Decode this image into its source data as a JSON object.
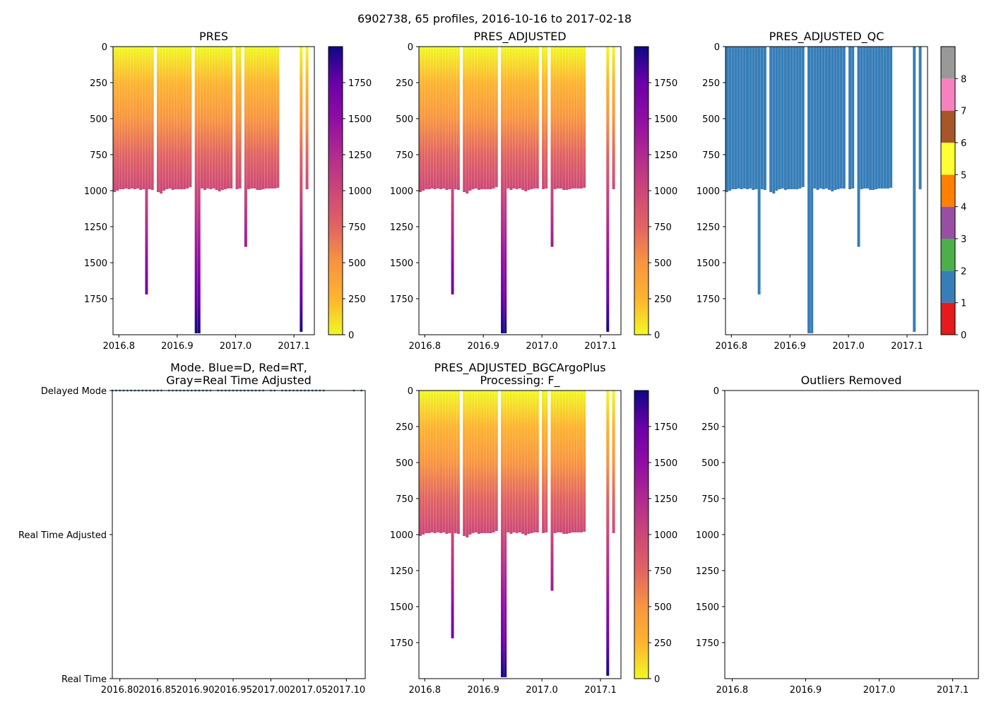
{
  "figure": {
    "title": "6902738, 65 profiles, 2016-10-16 to 2017-02-18"
  },
  "chart_data": [
    {
      "id": "pres",
      "type": "heatmap",
      "title": "PRES",
      "colormap": "plasma_r",
      "x": [
        2016.79,
        2016.795,
        2016.8,
        2016.805,
        2016.81,
        2016.815,
        2016.82,
        2016.825,
        2016.83,
        2016.835,
        2016.84,
        2016.845,
        2016.85,
        2016.855,
        2016.865,
        2016.87,
        2016.875,
        2016.88,
        2016.885,
        2016.89,
        2016.895,
        2016.9,
        2016.905,
        2016.91,
        2016.915,
        2016.92,
        2016.93,
        2016.935,
        2016.94,
        2016.945,
        2016.95,
        2016.955,
        2016.96,
        2016.965,
        2016.97,
        2016.975,
        2016.98,
        2016.985,
        2016.99,
        2017.0,
        2017.005,
        2017.015,
        2017.02,
        2017.025,
        2017.03,
        2017.035,
        2017.04,
        2017.045,
        2017.05,
        2017.055,
        2017.06,
        2017.065,
        2017.07,
        2017.11,
        2017.12
      ],
      "max_depth": [
        1010,
        1000,
        990,
        990,
        985,
        990,
        985,
        990,
        985,
        995,
        990,
        1720,
        990,
        995,
        1010,
        1020,
        1000,
        990,
        985,
        995,
        990,
        990,
        990,
        990,
        985,
        975,
        1990,
        1990,
        985,
        995,
        985,
        990,
        985,
        995,
        1005,
        995,
        990,
        985,
        985,
        990,
        985,
        1390,
        990,
        985,
        985,
        995,
        995,
        990,
        985,
        985,
        985,
        985,
        980,
        1980,
        990
      ],
      "xlim": [
        2016.79,
        2017.135
      ],
      "xticks": [
        2016.8,
        2016.9,
        2017.0,
        2017.1
      ],
      "xticklabels": [
        "2016.8",
        "2016.9",
        "2017.0",
        "2017.1"
      ],
      "ylim": [
        0,
        2000
      ],
      "yticks": [
        0,
        250,
        500,
        750,
        1000,
        1250,
        1500,
        1750
      ],
      "colorbar": {
        "range": [
          0,
          2000
        ],
        "ticks": [
          0,
          250,
          500,
          750,
          1000,
          1250,
          1500,
          1750
        ]
      }
    },
    {
      "id": "pres_adj",
      "type": "heatmap",
      "title": "PRES_ADJUSTED",
      "colormap": "plasma_r",
      "x": [
        2016.79,
        2016.795,
        2016.8,
        2016.805,
        2016.81,
        2016.815,
        2016.82,
        2016.825,
        2016.83,
        2016.835,
        2016.84,
        2016.845,
        2016.85,
        2016.855,
        2016.865,
        2016.87,
        2016.875,
        2016.88,
        2016.885,
        2016.89,
        2016.895,
        2016.9,
        2016.905,
        2016.91,
        2016.915,
        2016.92,
        2016.93,
        2016.935,
        2016.94,
        2016.945,
        2016.95,
        2016.955,
        2016.96,
        2016.965,
        2016.97,
        2016.975,
        2016.98,
        2016.985,
        2016.99,
        2017.0,
        2017.005,
        2017.015,
        2017.02,
        2017.025,
        2017.03,
        2017.035,
        2017.04,
        2017.045,
        2017.05,
        2017.055,
        2017.06,
        2017.065,
        2017.07,
        2017.11,
        2017.12
      ],
      "max_depth": [
        1010,
        1000,
        990,
        990,
        985,
        990,
        985,
        990,
        985,
        995,
        990,
        1720,
        990,
        995,
        1010,
        1020,
        1000,
        990,
        985,
        995,
        990,
        990,
        990,
        990,
        985,
        975,
        1990,
        1990,
        985,
        995,
        985,
        990,
        985,
        995,
        1005,
        995,
        990,
        985,
        985,
        990,
        985,
        1390,
        990,
        985,
        985,
        995,
        995,
        990,
        985,
        985,
        985,
        985,
        980,
        1980,
        990
      ],
      "xlim": [
        2016.79,
        2017.135
      ],
      "xticks": [
        2016.8,
        2016.9,
        2017.0,
        2017.1
      ],
      "xticklabels": [
        "2016.8",
        "2016.9",
        "2017.0",
        "2017.1"
      ],
      "ylim": [
        0,
        2000
      ],
      "yticks": [
        0,
        250,
        500,
        750,
        1000,
        1250,
        1500,
        1750
      ],
      "colorbar": {
        "range": [
          0,
          2000
        ],
        "ticks": [
          0,
          250,
          500,
          750,
          1000,
          1250,
          1500,
          1750
        ]
      }
    },
    {
      "id": "pres_adj_qc",
      "type": "heatmap",
      "title": "PRES_ADJUSTED_QC",
      "colormap": "qc",
      "qc_value": 1,
      "x": [
        2016.79,
        2016.795,
        2016.8,
        2016.805,
        2016.81,
        2016.815,
        2016.82,
        2016.825,
        2016.83,
        2016.835,
        2016.84,
        2016.845,
        2016.85,
        2016.855,
        2016.865,
        2016.87,
        2016.875,
        2016.88,
        2016.885,
        2016.89,
        2016.895,
        2016.9,
        2016.905,
        2016.91,
        2016.915,
        2016.92,
        2016.93,
        2016.935,
        2016.94,
        2016.945,
        2016.95,
        2016.955,
        2016.96,
        2016.965,
        2016.97,
        2016.975,
        2016.98,
        2016.985,
        2016.99,
        2017.0,
        2017.005,
        2017.015,
        2017.02,
        2017.025,
        2017.03,
        2017.035,
        2017.04,
        2017.045,
        2017.05,
        2017.055,
        2017.06,
        2017.065,
        2017.07,
        2017.11,
        2017.12
      ],
      "max_depth": [
        1010,
        1000,
        990,
        990,
        985,
        990,
        985,
        990,
        985,
        995,
        990,
        1720,
        990,
        995,
        1010,
        1020,
        1000,
        990,
        985,
        995,
        990,
        990,
        990,
        990,
        985,
        975,
        1990,
        1990,
        985,
        995,
        985,
        990,
        985,
        995,
        1005,
        995,
        990,
        985,
        985,
        990,
        985,
        1390,
        990,
        985,
        985,
        995,
        995,
        990,
        985,
        985,
        985,
        985,
        980,
        1980,
        990
      ],
      "xlim": [
        2016.79,
        2017.135
      ],
      "xticks": [
        2016.8,
        2016.9,
        2017.0,
        2017.1
      ],
      "xticklabels": [
        "2016.8",
        "2016.9",
        "2017.0",
        "2017.1"
      ],
      "ylim": [
        0,
        2000
      ],
      "yticks": [
        0,
        250,
        500,
        750,
        1000,
        1250,
        1500,
        1750
      ],
      "colorbar": {
        "range": [
          0,
          9
        ],
        "ticks": [
          0,
          1,
          2,
          3,
          4,
          5,
          6,
          7,
          8
        ],
        "colors": [
          "#e41a1c",
          "#377eb8",
          "#4daf4a",
          "#984ea3",
          "#ff7f00",
          "#ffff33",
          "#a65628",
          "#f781bf",
          "#999999"
        ]
      }
    },
    {
      "id": "mode",
      "type": "scatter",
      "title": "Mode. Blue=D, Red=RT,",
      "title2": "Gray=Real Time Adjusted",
      "x": [
        2016.79,
        2016.795,
        2016.8,
        2016.805,
        2016.81,
        2016.815,
        2016.82,
        2016.825,
        2016.83,
        2016.835,
        2016.84,
        2016.845,
        2016.85,
        2016.855,
        2016.865,
        2016.87,
        2016.875,
        2016.88,
        2016.885,
        2016.89,
        2016.895,
        2016.9,
        2016.905,
        2016.91,
        2016.915,
        2016.92,
        2016.93,
        2016.935,
        2016.94,
        2016.945,
        2016.95,
        2016.955,
        2016.96,
        2016.965,
        2016.97,
        2016.975,
        2016.98,
        2016.985,
        2016.99,
        2017.0,
        2017.005,
        2017.015,
        2017.02,
        2017.025,
        2017.03,
        2017.035,
        2017.04,
        2017.045,
        2017.05,
        2017.055,
        2017.06,
        2017.065,
        2017.07,
        2017.11,
        2017.12
      ],
      "y": 1,
      "point_color": "#1f77b4",
      "xlim": [
        2016.79,
        2017.125
      ],
      "xticks": [
        2016.8,
        2016.85,
        2016.9,
        2016.95,
        2017.0,
        2017.05,
        2017.1
      ],
      "xticklabels": [
        "2016.80",
        "2016.85",
        "2016.90",
        "2016.95",
        "2017.00",
        "2017.05",
        "2017.10"
      ],
      "ylim": [
        -1,
        1
      ],
      "yticks": [
        1,
        0,
        -1
      ],
      "yticklabels": [
        "Delayed Mode",
        "Real Time Adjusted",
        "Real Time"
      ]
    },
    {
      "id": "pres_bgc",
      "type": "heatmap",
      "title": "PRES_ADJUSTED_BGCArgoPlus",
      "title2": "Processing: F_",
      "colormap": "plasma_r",
      "x": [
        2016.79,
        2016.795,
        2016.8,
        2016.805,
        2016.81,
        2016.815,
        2016.82,
        2016.825,
        2016.83,
        2016.835,
        2016.84,
        2016.845,
        2016.85,
        2016.855,
        2016.865,
        2016.87,
        2016.875,
        2016.88,
        2016.885,
        2016.89,
        2016.895,
        2016.9,
        2016.905,
        2016.91,
        2016.915,
        2016.92,
        2016.93,
        2016.935,
        2016.94,
        2016.945,
        2016.95,
        2016.955,
        2016.96,
        2016.965,
        2016.97,
        2016.975,
        2016.98,
        2016.985,
        2016.99,
        2017.0,
        2017.005,
        2017.015,
        2017.02,
        2017.025,
        2017.03,
        2017.035,
        2017.04,
        2017.045,
        2017.05,
        2017.055,
        2017.06,
        2017.065,
        2017.07,
        2017.11,
        2017.12
      ],
      "max_depth": [
        1010,
        1000,
        990,
        990,
        985,
        990,
        985,
        990,
        985,
        995,
        990,
        1720,
        990,
        995,
        1010,
        1020,
        1000,
        990,
        985,
        995,
        990,
        990,
        990,
        990,
        985,
        975,
        1990,
        1990,
        985,
        995,
        985,
        990,
        985,
        995,
        1005,
        995,
        990,
        985,
        985,
        990,
        985,
        1390,
        990,
        985,
        985,
        995,
        995,
        990,
        985,
        985,
        985,
        985,
        980,
        1980,
        990
      ],
      "xlim": [
        2016.79,
        2017.135
      ],
      "xticks": [
        2016.8,
        2016.9,
        2017.0,
        2017.1
      ],
      "xticklabels": [
        "2016.8",
        "2016.9",
        "2017.0",
        "2017.1"
      ],
      "ylim": [
        0,
        2000
      ],
      "yticks": [
        0,
        250,
        500,
        750,
        1000,
        1250,
        1500,
        1750
      ],
      "colorbar": {
        "range": [
          0,
          2000
        ],
        "ticks": [
          0,
          250,
          500,
          750,
          1000,
          1250,
          1500,
          1750
        ]
      }
    },
    {
      "id": "outliers",
      "type": "scatter",
      "title": "Outliers Removed",
      "x": [],
      "y": [],
      "xlim": [
        2016.79,
        2017.135
      ],
      "xticks": [
        2016.8,
        2016.9,
        2017.0,
        2017.1
      ],
      "xticklabels": [
        "2016.8",
        "2016.9",
        "2017.0",
        "2017.1"
      ],
      "ylim": [
        0,
        2000
      ],
      "yticks": [
        0,
        250,
        500,
        750,
        1000,
        1250,
        1500,
        1750
      ]
    }
  ]
}
